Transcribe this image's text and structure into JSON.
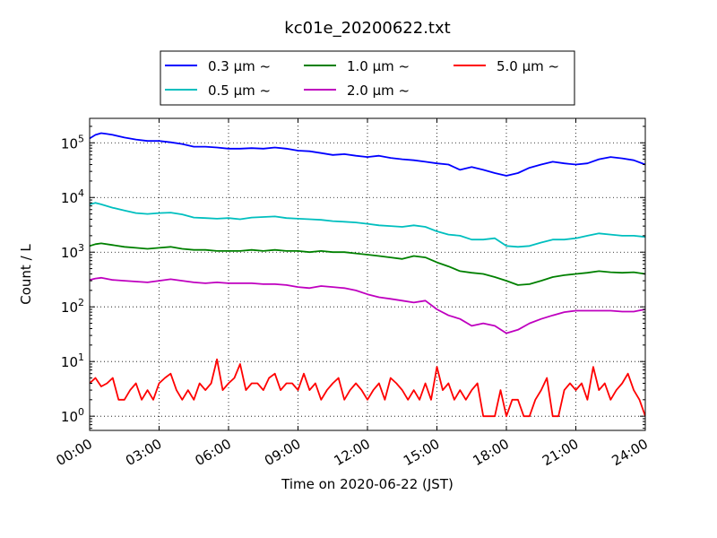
{
  "chart_data": {
    "type": "line",
    "title": "kc01e_20200622.txt",
    "xlabel": "Time on 2020-06-22 (JST)",
    "ylabel": "Count / L",
    "yscale": "log",
    "xlim": [
      0,
      24
    ],
    "ylim": [
      0.55,
      280000
    ],
    "grid": true,
    "legend_position": "top",
    "x_ticks": [
      {
        "value": 0,
        "label": "00:00"
      },
      {
        "value": 3,
        "label": "03:00"
      },
      {
        "value": 6,
        "label": "06:00"
      },
      {
        "value": 9,
        "label": "09:00"
      },
      {
        "value": 12,
        "label": "12:00"
      },
      {
        "value": 15,
        "label": "15:00"
      },
      {
        "value": 18,
        "label": "18:00"
      },
      {
        "value": 21,
        "label": "21:00"
      },
      {
        "value": 24,
        "label": "24:00"
      }
    ],
    "y_ticks": [
      {
        "value": 1,
        "base": "10",
        "exp": "0"
      },
      {
        "value": 10,
        "base": "10",
        "exp": "1"
      },
      {
        "value": 100,
        "base": "10",
        "exp": "2"
      },
      {
        "value": 1000,
        "base": "10",
        "exp": "3"
      },
      {
        "value": 10000,
        "base": "10",
        "exp": "4"
      },
      {
        "value": 100000,
        "base": "10",
        "exp": "5"
      }
    ],
    "series": [
      {
        "name": "0.3 µm ~",
        "color": "#0000ff",
        "points": [
          [
            0,
            120000
          ],
          [
            0.25,
            140000
          ],
          [
            0.5,
            150000
          ],
          [
            0.75,
            145000
          ],
          [
            1,
            140000
          ],
          [
            1.5,
            125000
          ],
          [
            2,
            115000
          ],
          [
            2.5,
            108000
          ],
          [
            3,
            108000
          ],
          [
            3.5,
            102000
          ],
          [
            4,
            95000
          ],
          [
            4.5,
            85000
          ],
          [
            5,
            85000
          ],
          [
            5.5,
            82000
          ],
          [
            6,
            78000
          ],
          [
            6.5,
            78000
          ],
          [
            7,
            80000
          ],
          [
            7.5,
            78000
          ],
          [
            8,
            82000
          ],
          [
            8.5,
            78000
          ],
          [
            9,
            72000
          ],
          [
            9.5,
            70000
          ],
          [
            10,
            65000
          ],
          [
            10.5,
            60000
          ],
          [
            11,
            62000
          ],
          [
            11.5,
            58000
          ],
          [
            12,
            55000
          ],
          [
            12.5,
            58000
          ],
          [
            13,
            53000
          ],
          [
            13.5,
            50000
          ],
          [
            14,
            48000
          ],
          [
            14.5,
            45000
          ],
          [
            15,
            42000
          ],
          [
            15.5,
            40000
          ],
          [
            16,
            32000
          ],
          [
            16.5,
            36000
          ],
          [
            17,
            32000
          ],
          [
            17.5,
            28000
          ],
          [
            18,
            25000
          ],
          [
            18.5,
            28000
          ],
          [
            19,
            35000
          ],
          [
            19.5,
            40000
          ],
          [
            20,
            45000
          ],
          [
            20.5,
            42000
          ],
          [
            21,
            40000
          ],
          [
            21.5,
            42000
          ],
          [
            22,
            50000
          ],
          [
            22.5,
            55000
          ],
          [
            23,
            52000
          ],
          [
            23.5,
            48000
          ],
          [
            24,
            40000
          ]
        ]
      },
      {
        "name": "0.5 µm ~",
        "color": "#00bfbf",
        "points": [
          [
            0,
            7500
          ],
          [
            0.25,
            8000
          ],
          [
            0.5,
            7500
          ],
          [
            1,
            6500
          ],
          [
            1.5,
            5800
          ],
          [
            2,
            5200
          ],
          [
            2.5,
            5000
          ],
          [
            3,
            5200
          ],
          [
            3.5,
            5300
          ],
          [
            4,
            4900
          ],
          [
            4.5,
            4300
          ],
          [
            5,
            4200
          ],
          [
            5.5,
            4100
          ],
          [
            6,
            4200
          ],
          [
            6.5,
            4000
          ],
          [
            7,
            4300
          ],
          [
            7.5,
            4400
          ],
          [
            8,
            4500
          ],
          [
            8.5,
            4200
          ],
          [
            9,
            4100
          ],
          [
            9.5,
            4000
          ],
          [
            10,
            3900
          ],
          [
            10.5,
            3700
          ],
          [
            11,
            3600
          ],
          [
            11.5,
            3500
          ],
          [
            12,
            3300
          ],
          [
            12.5,
            3100
          ],
          [
            13,
            3000
          ],
          [
            13.5,
            2900
          ],
          [
            14,
            3100
          ],
          [
            14.5,
            2900
          ],
          [
            15,
            2400
          ],
          [
            15.5,
            2100
          ],
          [
            16,
            2000
          ],
          [
            16.5,
            1700
          ],
          [
            17,
            1700
          ],
          [
            17.5,
            1800
          ],
          [
            18,
            1300
          ],
          [
            18.5,
            1250
          ],
          [
            19,
            1300
          ],
          [
            19.5,
            1500
          ],
          [
            20,
            1700
          ],
          [
            20.5,
            1700
          ],
          [
            21,
            1800
          ],
          [
            21.5,
            2000
          ],
          [
            22,
            2200
          ],
          [
            22.5,
            2100
          ],
          [
            23,
            2000
          ],
          [
            23.5,
            2000
          ],
          [
            24,
            1900
          ]
        ]
      },
      {
        "name": "1.0 µm ~",
        "color": "#008000",
        "points": [
          [
            0,
            1300
          ],
          [
            0.25,
            1400
          ],
          [
            0.5,
            1450
          ],
          [
            1,
            1350
          ],
          [
            1.5,
            1250
          ],
          [
            2,
            1200
          ],
          [
            2.5,
            1150
          ],
          [
            3,
            1200
          ],
          [
            3.5,
            1250
          ],
          [
            4,
            1150
          ],
          [
            4.5,
            1100
          ],
          [
            5,
            1100
          ],
          [
            5.5,
            1050
          ],
          [
            6,
            1050
          ],
          [
            6.5,
            1050
          ],
          [
            7,
            1100
          ],
          [
            7.5,
            1050
          ],
          [
            8,
            1100
          ],
          [
            8.5,
            1050
          ],
          [
            9,
            1050
          ],
          [
            9.5,
            1000
          ],
          [
            10,
            1050
          ],
          [
            10.5,
            1000
          ],
          [
            11,
            1000
          ],
          [
            11.5,
            950
          ],
          [
            12,
            900
          ],
          [
            12.5,
            850
          ],
          [
            13,
            800
          ],
          [
            13.5,
            750
          ],
          [
            14,
            850
          ],
          [
            14.5,
            800
          ],
          [
            15,
            650
          ],
          [
            15.5,
            550
          ],
          [
            16,
            450
          ],
          [
            16.5,
            420
          ],
          [
            17,
            400
          ],
          [
            17.5,
            350
          ],
          [
            18,
            300
          ],
          [
            18.5,
            250
          ],
          [
            19,
            260
          ],
          [
            19.5,
            300
          ],
          [
            20,
            350
          ],
          [
            20.5,
            380
          ],
          [
            21,
            400
          ],
          [
            21.5,
            420
          ],
          [
            22,
            450
          ],
          [
            22.5,
            430
          ],
          [
            23,
            420
          ],
          [
            23.5,
            430
          ],
          [
            24,
            400
          ]
        ]
      },
      {
        "name": "2.0 µm ~",
        "color": "#bf00bf",
        "points": [
          [
            0,
            310
          ],
          [
            0.25,
            330
          ],
          [
            0.5,
            340
          ],
          [
            1,
            310
          ],
          [
            1.5,
            300
          ],
          [
            2,
            290
          ],
          [
            2.5,
            280
          ],
          [
            3,
            300
          ],
          [
            3.5,
            320
          ],
          [
            4,
            300
          ],
          [
            4.5,
            280
          ],
          [
            5,
            270
          ],
          [
            5.5,
            280
          ],
          [
            6,
            270
          ],
          [
            6.5,
            270
          ],
          [
            7,
            270
          ],
          [
            7.5,
            260
          ],
          [
            8,
            260
          ],
          [
            8.5,
            250
          ],
          [
            9,
            230
          ],
          [
            9.5,
            220
          ],
          [
            10,
            240
          ],
          [
            10.5,
            230
          ],
          [
            11,
            220
          ],
          [
            11.5,
            200
          ],
          [
            12,
            170
          ],
          [
            12.5,
            150
          ],
          [
            13,
            140
          ],
          [
            13.5,
            130
          ],
          [
            14,
            120
          ],
          [
            14.5,
            130
          ],
          [
            15,
            90
          ],
          [
            15.5,
            70
          ],
          [
            16,
            60
          ],
          [
            16.5,
            45
          ],
          [
            17,
            50
          ],
          [
            17.5,
            45
          ],
          [
            18,
            33
          ],
          [
            18.5,
            38
          ],
          [
            19,
            50
          ],
          [
            19.5,
            60
          ],
          [
            20,
            70
          ],
          [
            20.5,
            80
          ],
          [
            21,
            85
          ],
          [
            21.5,
            85
          ],
          [
            22,
            85
          ],
          [
            22.5,
            85
          ],
          [
            23,
            82
          ],
          [
            23.5,
            82
          ],
          [
            24,
            90
          ]
        ]
      },
      {
        "name": "5.0 µm ~",
        "color": "#ff0000",
        "points": [
          [
            0,
            4
          ],
          [
            0.25,
            5
          ],
          [
            0.5,
            3.5
          ],
          [
            0.75,
            4
          ],
          [
            1,
            5
          ],
          [
            1.25,
            2
          ],
          [
            1.5,
            2
          ],
          [
            1.75,
            3
          ],
          [
            2,
            4
          ],
          [
            2.25,
            2
          ],
          [
            2.5,
            3
          ],
          [
            2.75,
            2
          ],
          [
            3,
            4
          ],
          [
            3.25,
            5
          ],
          [
            3.5,
            6
          ],
          [
            3.75,
            3
          ],
          [
            4,
            2
          ],
          [
            4.25,
            3
          ],
          [
            4.5,
            2
          ],
          [
            4.75,
            4
          ],
          [
            5,
            3
          ],
          [
            5.25,
            4
          ],
          [
            5.5,
            11
          ],
          [
            5.75,
            3
          ],
          [
            6,
            4
          ],
          [
            6.25,
            5
          ],
          [
            6.5,
            9
          ],
          [
            6.75,
            3
          ],
          [
            7,
            4
          ],
          [
            7.25,
            4
          ],
          [
            7.5,
            3
          ],
          [
            7.75,
            5
          ],
          [
            8,
            6
          ],
          [
            8.25,
            3
          ],
          [
            8.5,
            4
          ],
          [
            8.75,
            4
          ],
          [
            9,
            3
          ],
          [
            9.25,
            6
          ],
          [
            9.5,
            3
          ],
          [
            9.75,
            4
          ],
          [
            10,
            2
          ],
          [
            10.25,
            3
          ],
          [
            10.5,
            4
          ],
          [
            10.75,
            5
          ],
          [
            11,
            2
          ],
          [
            11.25,
            3
          ],
          [
            11.5,
            4
          ],
          [
            11.75,
            3
          ],
          [
            12,
            2
          ],
          [
            12.25,
            3
          ],
          [
            12.5,
            4
          ],
          [
            12.75,
            2
          ],
          [
            13,
            5
          ],
          [
            13.25,
            4
          ],
          [
            13.5,
            3
          ],
          [
            13.75,
            2
          ],
          [
            14,
            3
          ],
          [
            14.25,
            2
          ],
          [
            14.5,
            4
          ],
          [
            14.75,
            2
          ],
          [
            15,
            8
          ],
          [
            15.25,
            3
          ],
          [
            15.5,
            4
          ],
          [
            15.75,
            2
          ],
          [
            16,
            3
          ],
          [
            16.25,
            2
          ],
          [
            16.5,
            3
          ],
          [
            16.75,
            4
          ],
          [
            17,
            1
          ],
          [
            17.25,
            1
          ],
          [
            17.5,
            1
          ],
          [
            17.75,
            3
          ],
          [
            18,
            1
          ],
          [
            18.25,
            2
          ],
          [
            18.5,
            2
          ],
          [
            18.75,
            1
          ],
          [
            19,
            1
          ],
          [
            19.25,
            2
          ],
          [
            19.5,
            3
          ],
          [
            19.75,
            5
          ],
          [
            20,
            1
          ],
          [
            20.25,
            1
          ],
          [
            20.5,
            3
          ],
          [
            20.75,
            4
          ],
          [
            21,
            3
          ],
          [
            21.25,
            4
          ],
          [
            21.5,
            2
          ],
          [
            21.75,
            8
          ],
          [
            22,
            3
          ],
          [
            22.25,
            4
          ],
          [
            22.5,
            2
          ],
          [
            22.75,
            3
          ],
          [
            23,
            4
          ],
          [
            23.25,
            6
          ],
          [
            23.5,
            3
          ],
          [
            23.75,
            2
          ],
          [
            24,
            1
          ]
        ]
      }
    ]
  },
  "legend_rows": [
    [
      "0.3 µm ~",
      "1.0 µm ~",
      "5.0 µm ~"
    ],
    [
      "0.5 µm ~",
      "2.0 µm ~"
    ]
  ]
}
